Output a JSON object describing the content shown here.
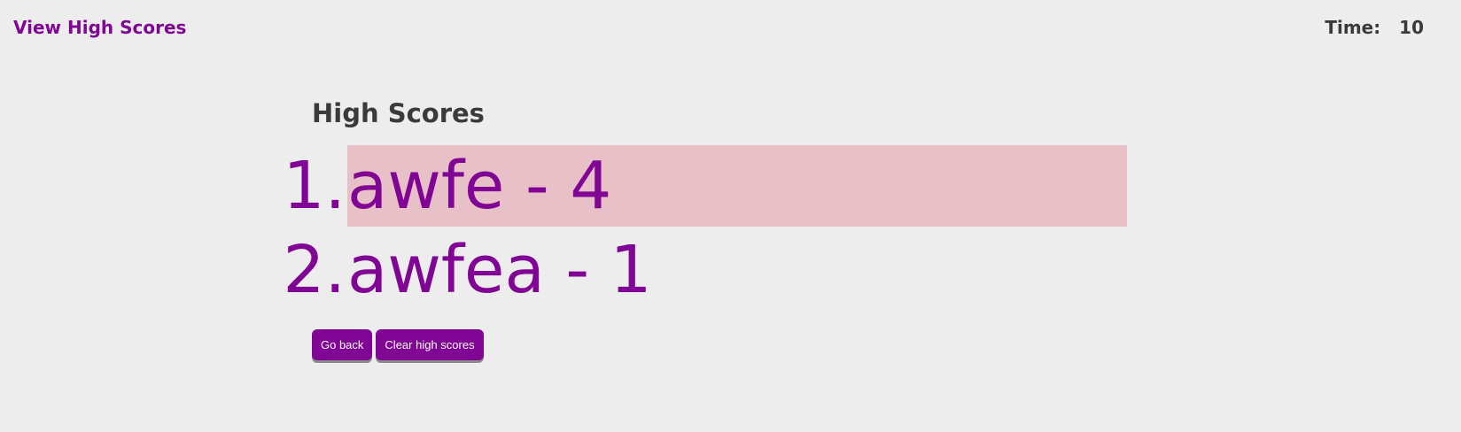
{
  "header": {
    "view_scores_label": "View High Scores",
    "timer_label": "Time:",
    "timer_value": "10"
  },
  "card": {
    "title": "High Scores",
    "scores": [
      {
        "rank": "1.",
        "entry": "awfe - 4",
        "highlighted": true
      },
      {
        "rank": "2.",
        "entry": "awfea - 1",
        "highlighted": false
      }
    ],
    "go_back_label": "Go back",
    "clear_label": "Clear high scores"
  },
  "colors": {
    "accent": "#800594",
    "background": "#ededed",
    "highlight": "#e8c1c8",
    "text": "#3a3a3a"
  }
}
